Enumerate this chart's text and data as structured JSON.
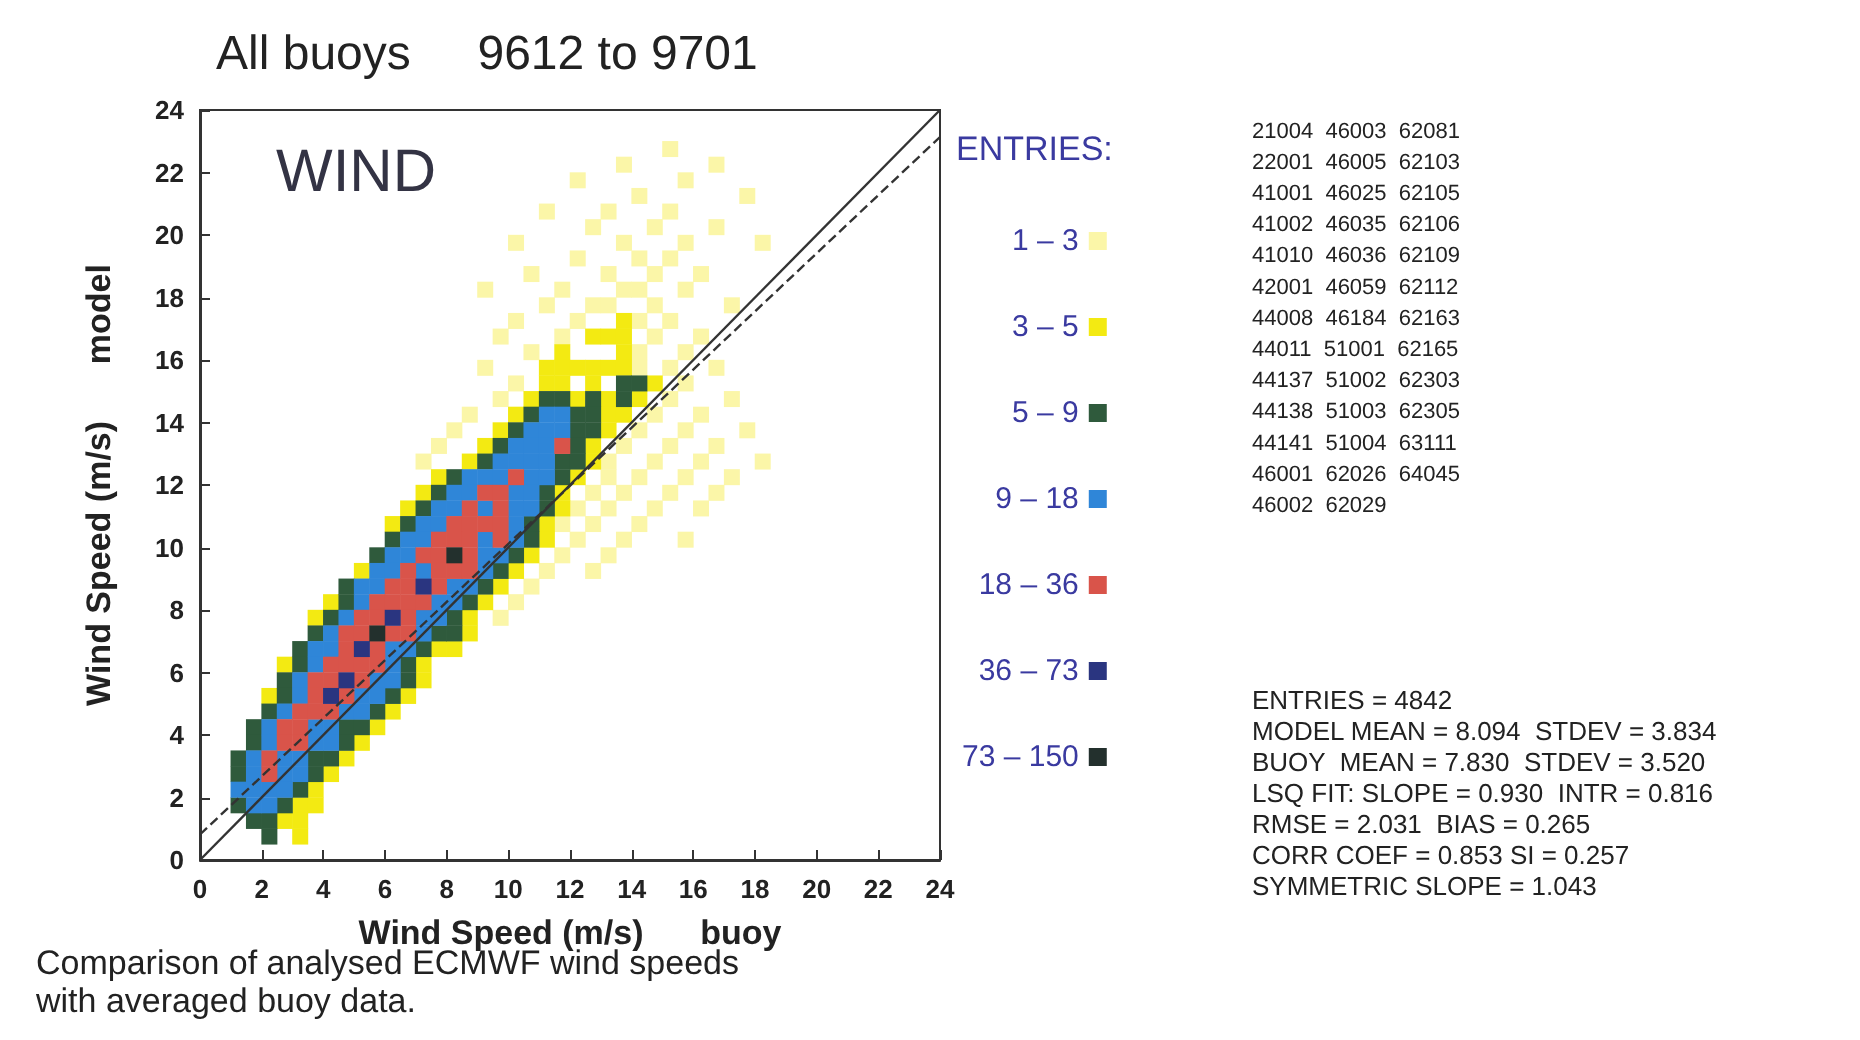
{
  "chart_data": {
    "type": "scatter",
    "title": "All buoys     9612 to 9701",
    "xlabel": "Wind Speed (m/s)      buoy",
    "ylabel": "Wind Speed (m/s)      model",
    "legend_title": "ENTRIES:",
    "legend": "right",
    "marker": "square",
    "xlim": [
      0,
      24
    ],
    "ylim": [
      0,
      24
    ],
    "xticks": [
      0,
      2,
      4,
      6,
      8,
      10,
      12,
      14,
      16,
      18,
      20,
      22,
      24
    ],
    "yticks": [
      0,
      2,
      4,
      6,
      8,
      10,
      12,
      14,
      16,
      18,
      20,
      22,
      24
    ],
    "grid": false,
    "series": [
      {
        "name": "1 – 3",
        "color": "#fbf6a8",
        "x": [
          15.25,
          13.75,
          16.75,
          12.25,
          15.75,
          14.25,
          17.75,
          11.25,
          13.25,
          15.25,
          12.75,
          14.75,
          16.75,
          10.25,
          13.75,
          15.75,
          18.25,
          12.25,
          14.25,
          15.25,
          10.75,
          13.25,
          14.75,
          16.25,
          9.25,
          11.75,
          13.75,
          14.25,
          15.75,
          11.25,
          12.75,
          13.25,
          14.75,
          17.25,
          10.25,
          12.25,
          14.25,
          15.25,
          9.75,
          11.75,
          14.75,
          16.25,
          10.75,
          14.25,
          15.75,
          9.25,
          14.25,
          15.25,
          16.75,
          10.25,
          15.75,
          9.75,
          15.25,
          17.25,
          8.75,
          14.75,
          16.25,
          8.25,
          14.25,
          15.75,
          17.75,
          7.75,
          13.75,
          15.25,
          16.75,
          7.25,
          13.25,
          14.75,
          16.25,
          18.25,
          13.25,
          14.25,
          15.75,
          17.25,
          12.75,
          13.75,
          15.25,
          16.75,
          12.25,
          13.25,
          14.75,
          16.25,
          11.75,
          12.75,
          14.25,
          12.25,
          13.75,
          15.75,
          11.75,
          13.25,
          11.25,
          12.75,
          10.75,
          10.25,
          9.75
        ],
        "values": [
          22.75,
          22.25,
          22.25,
          21.75,
          21.75,
          21.25,
          21.25,
          20.75,
          20.75,
          20.75,
          20.25,
          20.25,
          20.25,
          19.75,
          19.75,
          19.75,
          19.75,
          19.25,
          19.25,
          19.25,
          18.75,
          18.75,
          18.75,
          18.75,
          18.25,
          18.25,
          18.25,
          18.25,
          18.25,
          17.75,
          17.75,
          17.75,
          17.75,
          17.75,
          17.25,
          17.25,
          17.25,
          17.25,
          16.75,
          16.75,
          16.75,
          16.75,
          16.25,
          16.25,
          16.25,
          15.75,
          15.75,
          15.75,
          15.75,
          15.25,
          15.25,
          14.75,
          14.75,
          14.75,
          14.25,
          14.25,
          14.25,
          13.75,
          13.75,
          13.75,
          13.75,
          13.25,
          13.25,
          13.25,
          13.25,
          12.75,
          12.75,
          12.75,
          12.75,
          12.75,
          12.25,
          12.25,
          12.25,
          12.25,
          11.75,
          11.75,
          11.75,
          11.75,
          11.25,
          11.25,
          11.25,
          11.25,
          10.75,
          10.75,
          10.75,
          10.25,
          10.25,
          10.25,
          9.75,
          9.75,
          9.25,
          9.25,
          8.75,
          8.25,
          7.75
        ]
      },
      {
        "name": "3 – 5",
        "color": "#f3ea12",
        "x": [
          13.75,
          12.75,
          13.25,
          13.75,
          11.75,
          13.75,
          11.25,
          11.75,
          12.25,
          12.75,
          13.25,
          13.75,
          11.25,
          11.75,
          12.75,
          14.75,
          10.75,
          12.25,
          13.25,
          14.25,
          10.25,
          13.25,
          13.75,
          9.75,
          13.25,
          9.25,
          12.75,
          8.75,
          12.75,
          7.75,
          12.25,
          7.25,
          11.75,
          6.75,
          11.75,
          6.25,
          11.25,
          11.25,
          10.75,
          5.25,
          10.25,
          9.75,
          4.25,
          9.25,
          3.75,
          8.75,
          8.75,
          7.75,
          8.25,
          2.75,
          7.25,
          7.25,
          2.25,
          6.75,
          6.25,
          5.75,
          5.25,
          4.75,
          4.25,
          3.75,
          3.25,
          3.75,
          2.75,
          3.25,
          3.25
        ],
        "values": [
          17.25,
          16.75,
          16.75,
          16.75,
          16.25,
          16.25,
          15.75,
          15.75,
          15.75,
          15.75,
          15.75,
          15.75,
          15.25,
          15.25,
          15.25,
          15.25,
          14.75,
          14.75,
          14.75,
          14.75,
          14.25,
          14.25,
          14.25,
          13.75,
          13.75,
          13.25,
          13.25,
          12.75,
          12.75,
          12.25,
          12.25,
          11.75,
          11.75,
          11.25,
          11.25,
          10.75,
          10.75,
          10.25,
          9.75,
          9.25,
          9.25,
          8.75,
          8.25,
          8.25,
          7.75,
          7.75,
          7.25,
          6.75,
          6.75,
          6.25,
          6.25,
          5.75,
          5.25,
          5.25,
          4.75,
          4.25,
          3.75,
          3.25,
          2.75,
          2.25,
          1.75,
          1.75,
          1.25,
          1.25,
          0.75
        ]
      },
      {
        "name": "5 – 9",
        "color": "#2f5a3c",
        "x": [
          13.75,
          14.25,
          11.25,
          11.75,
          12.75,
          13.75,
          10.75,
          12.25,
          12.75,
          10.25,
          12.25,
          12.75,
          9.75,
          12.25,
          9.25,
          11.75,
          12.25,
          8.25,
          11.75,
          7.75,
          11.25,
          7.25,
          11.25,
          6.75,
          10.75,
          6.25,
          10.75,
          5.75,
          10.25,
          9.75,
          4.75,
          9.25,
          4.75,
          8.75,
          4.25,
          8.25,
          3.75,
          7.75,
          8.25,
          3.25,
          7.25,
          3.25,
          6.75,
          2.75,
          6.75,
          2.75,
          6.25,
          2.25,
          5.75,
          1.75,
          4.75,
          5.25,
          1.75,
          4.75,
          1.25,
          3.75,
          4.25,
          1.25,
          3.75,
          3.25,
          1.25,
          2.75,
          1.75,
          2.25,
          2.25
        ],
        "values": [
          15.25,
          15.25,
          14.75,
          14.75,
          14.75,
          14.75,
          14.25,
          14.25,
          14.25,
          13.75,
          13.75,
          13.75,
          13.25,
          13.25,
          12.75,
          12.75,
          12.75,
          12.25,
          12.25,
          11.75,
          11.75,
          11.25,
          11.25,
          10.75,
          10.75,
          10.25,
          10.25,
          9.75,
          9.75,
          9.25,
          8.75,
          8.75,
          8.25,
          8.25,
          7.75,
          7.75,
          7.25,
          7.25,
          7.25,
          6.75,
          6.75,
          6.25,
          6.25,
          5.75,
          5.75,
          5.25,
          5.25,
          4.75,
          4.75,
          4.25,
          4.25,
          4.25,
          3.75,
          3.75,
          3.25,
          3.25,
          3.25,
          2.75,
          2.75,
          2.25,
          1.75,
          1.75,
          1.25,
          1.25,
          0.75
        ]
      },
      {
        "name": "9 – 18",
        "color": "#2f86d8",
        "x": [
          11.25,
          11.75,
          10.75,
          11.25,
          11.75,
          10.25,
          10.75,
          11.25,
          9.75,
          10.25,
          10.75,
          11.25,
          8.75,
          9.25,
          9.75,
          10.75,
          11.25,
          8.25,
          8.75,
          10.25,
          10.75,
          7.75,
          8.25,
          9.25,
          10.25,
          10.75,
          7.25,
          7.75,
          10.25,
          6.75,
          7.25,
          9.25,
          10.25,
          6.25,
          6.75,
          9.25,
          9.75,
          5.75,
          6.25,
          7.25,
          9.25,
          5.25,
          5.75,
          8.25,
          8.75,
          5.25,
          7.75,
          8.25,
          4.75,
          7.25,
          7.75,
          4.25,
          7.25,
          3.75,
          4.25,
          6.25,
          6.75,
          3.75,
          6.25,
          3.25,
          5.75,
          6.25,
          3.25,
          5.25,
          5.75,
          2.75,
          4.75,
          5.25,
          2.25,
          3.75,
          4.25,
          2.25,
          3.75,
          4.25,
          1.75,
          2.75,
          3.25,
          1.75,
          2.75,
          3.25,
          1.25,
          1.75,
          2.25,
          2.75,
          1.75,
          2.25
        ],
        "values": [
          14.25,
          14.25,
          13.75,
          13.75,
          13.75,
          13.25,
          13.25,
          13.25,
          12.75,
          12.75,
          12.75,
          12.75,
          12.25,
          12.25,
          12.25,
          12.25,
          12.25,
          11.75,
          11.75,
          11.75,
          11.75,
          11.25,
          11.25,
          11.25,
          11.25,
          11.25,
          10.75,
          10.75,
          10.75,
          10.25,
          10.25,
          10.25,
          10.25,
          9.75,
          9.75,
          9.75,
          9.75,
          9.25,
          9.25,
          9.25,
          9.25,
          8.75,
          8.75,
          8.75,
          8.75,
          8.25,
          8.25,
          8.25,
          7.75,
          7.75,
          7.75,
          7.25,
          7.25,
          6.75,
          6.75,
          6.75,
          6.75,
          6.25,
          6.25,
          5.75,
          5.75,
          5.75,
          5.25,
          5.25,
          5.25,
          4.75,
          4.75,
          4.75,
          4.25,
          4.25,
          4.25,
          3.75,
          3.75,
          3.75,
          3.25,
          3.25,
          3.25,
          2.75,
          2.75,
          2.75,
          2.25,
          2.25,
          2.25,
          2.25,
          1.75,
          1.75
        ]
      },
      {
        "name": "18 – 36",
        "color": "#d9544a",
        "x": [
          11.75,
          10.25,
          9.25,
          9.75,
          8.75,
          9.75,
          8.25,
          8.75,
          9.25,
          9.75,
          7.75,
          8.25,
          8.75,
          9.75,
          7.25,
          7.75,
          8.75,
          6.75,
          7.75,
          8.25,
          8.75,
          6.25,
          6.75,
          7.75,
          5.75,
          6.25,
          6.75,
          7.25,
          5.25,
          5.75,
          6.75,
          4.75,
          5.25,
          6.25,
          6.75,
          4.75,
          5.75,
          4.25,
          4.75,
          5.25,
          5.75,
          3.75,
          4.25,
          5.25,
          3.75,
          4.75,
          3.25,
          3.75,
          4.25,
          2.75,
          3.25,
          2.75,
          3.25,
          2.25,
          2.25
        ],
        "values": [
          13.25,
          12.25,
          11.75,
          11.75,
          11.25,
          11.25,
          10.75,
          10.75,
          10.75,
          10.75,
          10.25,
          10.25,
          10.25,
          10.25,
          9.75,
          9.75,
          9.75,
          9.25,
          9.25,
          9.25,
          9.25,
          8.75,
          8.75,
          8.75,
          8.25,
          8.25,
          8.25,
          8.25,
          7.75,
          7.75,
          7.75,
          7.25,
          7.25,
          7.25,
          7.25,
          6.75,
          6.75,
          6.25,
          6.25,
          6.25,
          6.25,
          5.75,
          5.75,
          5.75,
          5.25,
          5.25,
          4.75,
          4.75,
          4.75,
          4.25,
          4.25,
          3.75,
          3.75,
          3.25,
          2.75
        ]
      },
      {
        "name": "36 – 73",
        "color": "#2a3580",
        "x": [
          7.25,
          6.25,
          5.25,
          4.75,
          4.25
        ],
        "values": [
          8.75,
          7.75,
          6.75,
          5.75,
          5.25
        ]
      },
      {
        "name": "73 – 150",
        "color": "#23302d",
        "x": [
          8.25,
          5.75
        ],
        "values": [
          9.75,
          7.25
        ]
      },
      {
        "type": "line",
        "color": "#333333",
        "x": [
          0,
          24
        ],
        "values": [
          0,
          24
        ],
        "line_style": "solid",
        "marker": "none"
      },
      {
        "type": "line",
        "color": "#333333",
        "x": [
          0,
          24
        ],
        "values": [
          0.816,
          23.136
        ],
        "line_style": "dashed",
        "marker": "none"
      }
    ],
    "annotations": [
      "WIND",
      "21004  46003  62081\n22001  46005  62103\n41001  46025  62105\n41002  46035  62106\n41010  46036  62109\n42001  46059  62112\n44008  46184  62163\n44011  51001  62165\n44137  51002  62303\n44138  51003  62305\n44141  51004  63111\n46001  62026  64045\n46002  62029",
      "ENTRIES = 4842\nMODEL MEAN = 8.094  STDEV = 3.834\nBUOY  MEAN = 7.830  STDEV = 3.520\nLSQ FIT: SLOPE = 0.930  INTR = 0.816\nRMSE = 2.031  BIAS = 0.265\nCORR COEF = 0.853 SI = 0.257\nSYMMETRIC SLOPE = 1.043",
      "Comparison of analysed ECMWF wind speeds\nwith averaged buoy data."
    ]
  }
}
